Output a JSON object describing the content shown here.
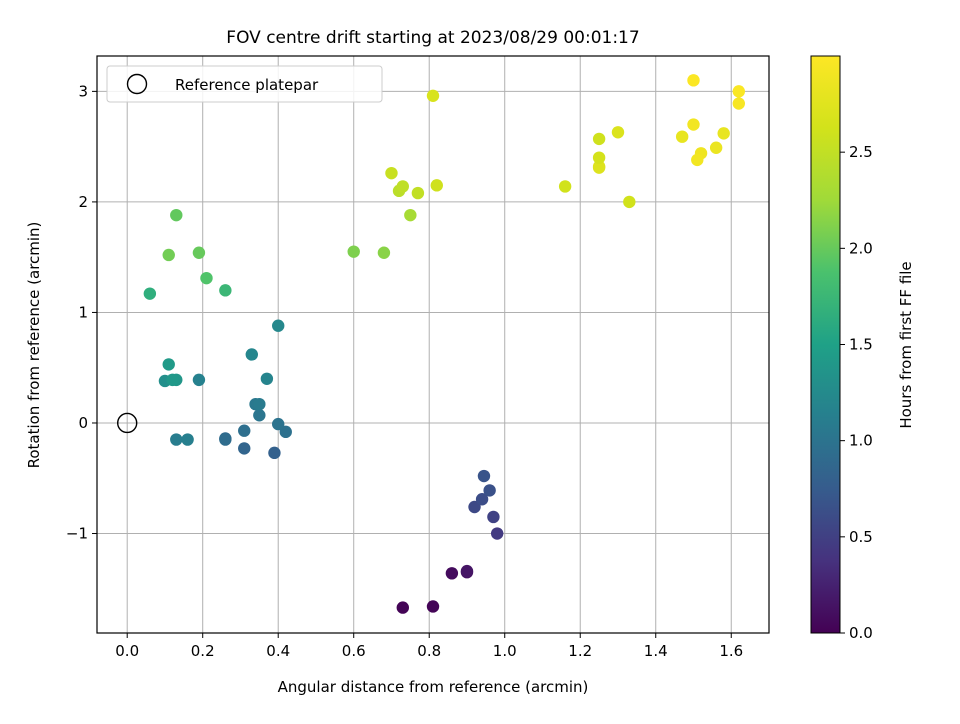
{
  "chart_data": {
    "type": "scatter",
    "title": "FOV centre drift starting at 2023/08/29 00:01:17",
    "xlabel": "Angular distance from reference (arcmin)",
    "ylabel": "Rotation from reference (arcmin)",
    "xlim": [
      -0.08,
      1.7
    ],
    "ylim": [
      -1.9,
      3.32
    ],
    "xticks": [
      "0.0",
      "0.2",
      "0.4",
      "0.6",
      "0.8",
      "1.0",
      "1.2",
      "1.4",
      "1.6"
    ],
    "xtick_values": [
      0,
      0.2,
      0.4,
      0.6,
      0.8,
      1.0,
      1.2,
      1.4,
      1.6
    ],
    "yticks": [
      "−1",
      "0",
      "1",
      "2",
      "3"
    ],
    "ytick_values": [
      -1,
      0,
      1,
      2,
      3
    ],
    "grid": true,
    "legend": {
      "position": "top-left",
      "label": "Reference platepar"
    },
    "reference_point": {
      "x": 0,
      "y": 0
    },
    "colorbar": {
      "label": "Hours from first FF file",
      "colormap": "viridis",
      "range": [
        0,
        3.0
      ],
      "ticks": [
        "0.0",
        "0.5",
        "1.0",
        "1.5",
        "2.0",
        "2.5"
      ],
      "tick_values": [
        0,
        0.5,
        1.0,
        1.5,
        2.0,
        2.5
      ]
    },
    "points": [
      {
        "x": 0.73,
        "y": -1.67,
        "c": 0.02
      },
      {
        "x": 0.81,
        "y": -1.66,
        "c": 0.03
      },
      {
        "x": 0.86,
        "y": -1.36,
        "c": 0.08
      },
      {
        "x": 0.9,
        "y": -1.35,
        "c": 0.12
      },
      {
        "x": 0.9,
        "y": -1.34,
        "c": 0.15
      },
      {
        "x": 0.98,
        "y": -1.0,
        "c": 0.45
      },
      {
        "x": 0.97,
        "y": -0.85,
        "c": 0.52
      },
      {
        "x": 0.92,
        "y": -0.76,
        "c": 0.58
      },
      {
        "x": 0.94,
        "y": -0.69,
        "c": 0.62
      },
      {
        "x": 0.96,
        "y": -0.61,
        "c": 0.65
      },
      {
        "x": 0.945,
        "y": -0.48,
        "c": 0.68
      },
      {
        "x": 0.39,
        "y": -0.27,
        "c": 0.8
      },
      {
        "x": 0.31,
        "y": -0.23,
        "c": 0.85
      },
      {
        "x": 0.26,
        "y": -0.14,
        "c": 0.9
      },
      {
        "x": 0.26,
        "y": -0.15,
        "c": 0.92
      },
      {
        "x": 0.31,
        "y": -0.07,
        "c": 0.95
      },
      {
        "x": 0.42,
        "y": -0.08,
        "c": 0.97
      },
      {
        "x": 0.4,
        "y": -0.01,
        "c": 1.0
      },
      {
        "x": 0.35,
        "y": 0.07,
        "c": 1.02
      },
      {
        "x": 0.34,
        "y": 0.17,
        "c": 1.05
      },
      {
        "x": 0.35,
        "y": 0.17,
        "c": 1.08
      },
      {
        "x": 0.13,
        "y": -0.15,
        "c": 1.1
      },
      {
        "x": 0.16,
        "y": -0.15,
        "c": 1.12
      },
      {
        "x": 0.19,
        "y": 0.39,
        "c": 1.15
      },
      {
        "x": 0.37,
        "y": 0.4,
        "c": 1.18
      },
      {
        "x": 0.33,
        "y": 0.62,
        "c": 1.2
      },
      {
        "x": 0.4,
        "y": 0.88,
        "c": 1.22
      },
      {
        "x": 0.1,
        "y": 0.38,
        "c": 1.3
      },
      {
        "x": 0.13,
        "y": 0.39,
        "c": 1.38
      },
      {
        "x": 0.12,
        "y": 0.39,
        "c": 1.4
      },
      {
        "x": 0.11,
        "y": 0.53,
        "c": 1.42
      },
      {
        "x": 0.06,
        "y": 1.17,
        "c": 1.65
      },
      {
        "x": 0.26,
        "y": 1.2,
        "c": 1.75
      },
      {
        "x": 0.21,
        "y": 1.31,
        "c": 1.9
      },
      {
        "x": 0.19,
        "y": 1.54,
        "c": 2.0
      },
      {
        "x": 0.11,
        "y": 1.52,
        "c": 2.05
      },
      {
        "x": 0.13,
        "y": 1.88,
        "c": 1.98
      },
      {
        "x": 0.6,
        "y": 1.55,
        "c": 2.1
      },
      {
        "x": 0.68,
        "y": 1.54,
        "c": 2.15
      },
      {
        "x": 0.75,
        "y": 1.88,
        "c": 2.3
      },
      {
        "x": 0.72,
        "y": 2.1,
        "c": 2.45
      },
      {
        "x": 0.73,
        "y": 2.14,
        "c": 2.48
      },
      {
        "x": 0.77,
        "y": 2.08,
        "c": 2.5
      },
      {
        "x": 0.7,
        "y": 2.26,
        "c": 2.55
      },
      {
        "x": 0.82,
        "y": 2.15,
        "c": 2.6
      },
      {
        "x": 0.81,
        "y": 2.96,
        "c": 2.68
      },
      {
        "x": 1.16,
        "y": 2.14,
        "c": 2.62
      },
      {
        "x": 1.25,
        "y": 2.31,
        "c": 2.72
      },
      {
        "x": 1.25,
        "y": 2.32,
        "c": 2.72
      },
      {
        "x": 1.25,
        "y": 2.4,
        "c": 2.64
      },
      {
        "x": 1.25,
        "y": 2.57,
        "c": 2.6
      },
      {
        "x": 1.3,
        "y": 2.63,
        "c": 2.7
      },
      {
        "x": 1.33,
        "y": 2.0,
        "c": 2.62
      },
      {
        "x": 1.47,
        "y": 2.59,
        "c": 2.82
      },
      {
        "x": 1.5,
        "y": 2.7,
        "c": 2.9
      },
      {
        "x": 1.52,
        "y": 2.44,
        "c": 2.88
      },
      {
        "x": 1.51,
        "y": 2.38,
        "c": 2.9
      },
      {
        "x": 1.56,
        "y": 2.49,
        "c": 2.84
      },
      {
        "x": 1.58,
        "y": 2.62,
        "c": 2.82
      },
      {
        "x": 1.62,
        "y": 2.89,
        "c": 2.95
      },
      {
        "x": 1.62,
        "y": 3.0,
        "c": 2.97
      },
      {
        "x": 1.5,
        "y": 3.1,
        "c": 2.98
      }
    ]
  }
}
